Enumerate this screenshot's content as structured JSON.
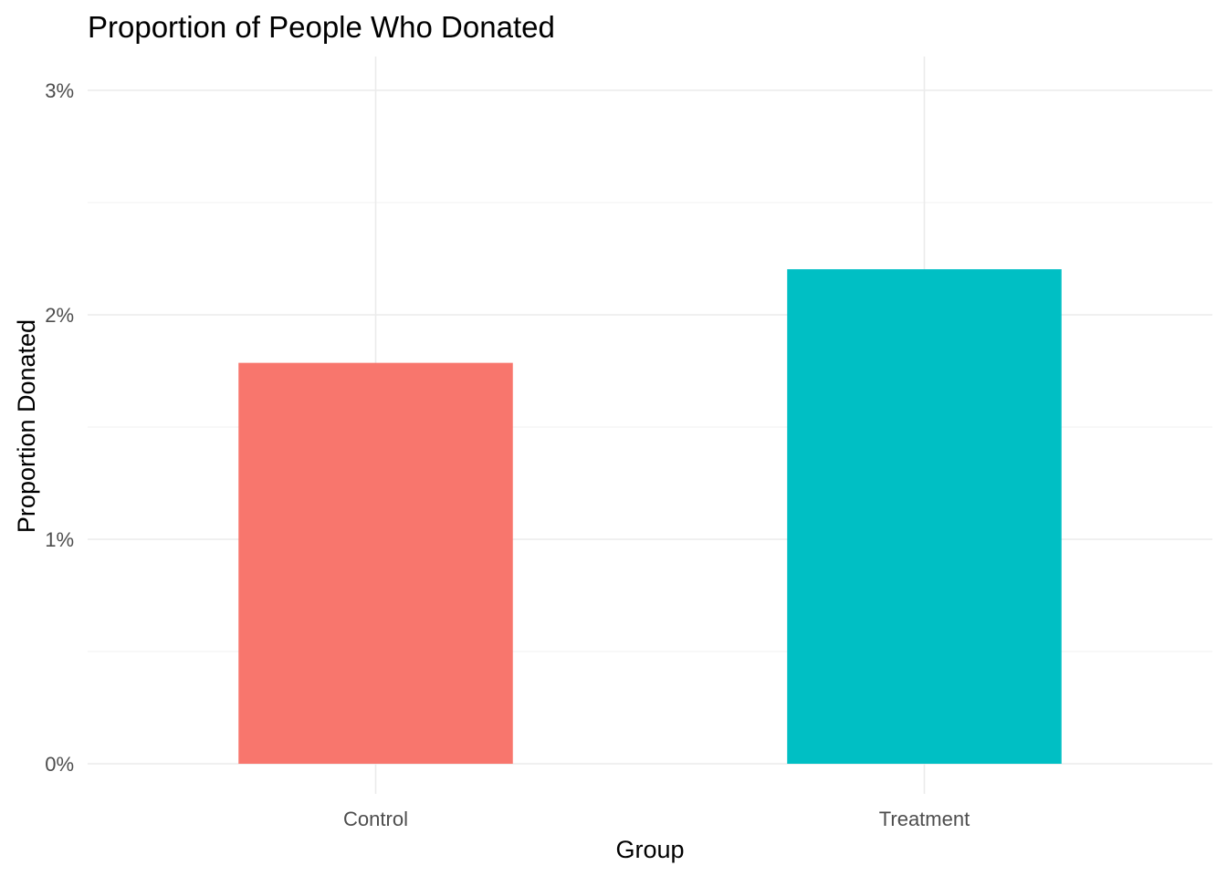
{
  "chart_data": {
    "type": "bar",
    "title": "Proportion of People Who Donated",
    "xlabel": "Group",
    "ylabel": "Proportion Donated",
    "categories": [
      "Control",
      "Treatment"
    ],
    "values": [
      0.01786,
      0.02203
    ],
    "colors": [
      "#F8766D",
      "#00BFC4"
    ],
    "ylim": [
      0,
      0.031
    ],
    "y_ticks": [
      0,
      0.01,
      0.02,
      0.03
    ],
    "y_tick_labels": [
      "0%",
      "1%",
      "2%",
      "3%"
    ],
    "y_minor_ticks": [
      0.005,
      0.015,
      0.025
    ],
    "grid": true,
    "legend": "none"
  }
}
